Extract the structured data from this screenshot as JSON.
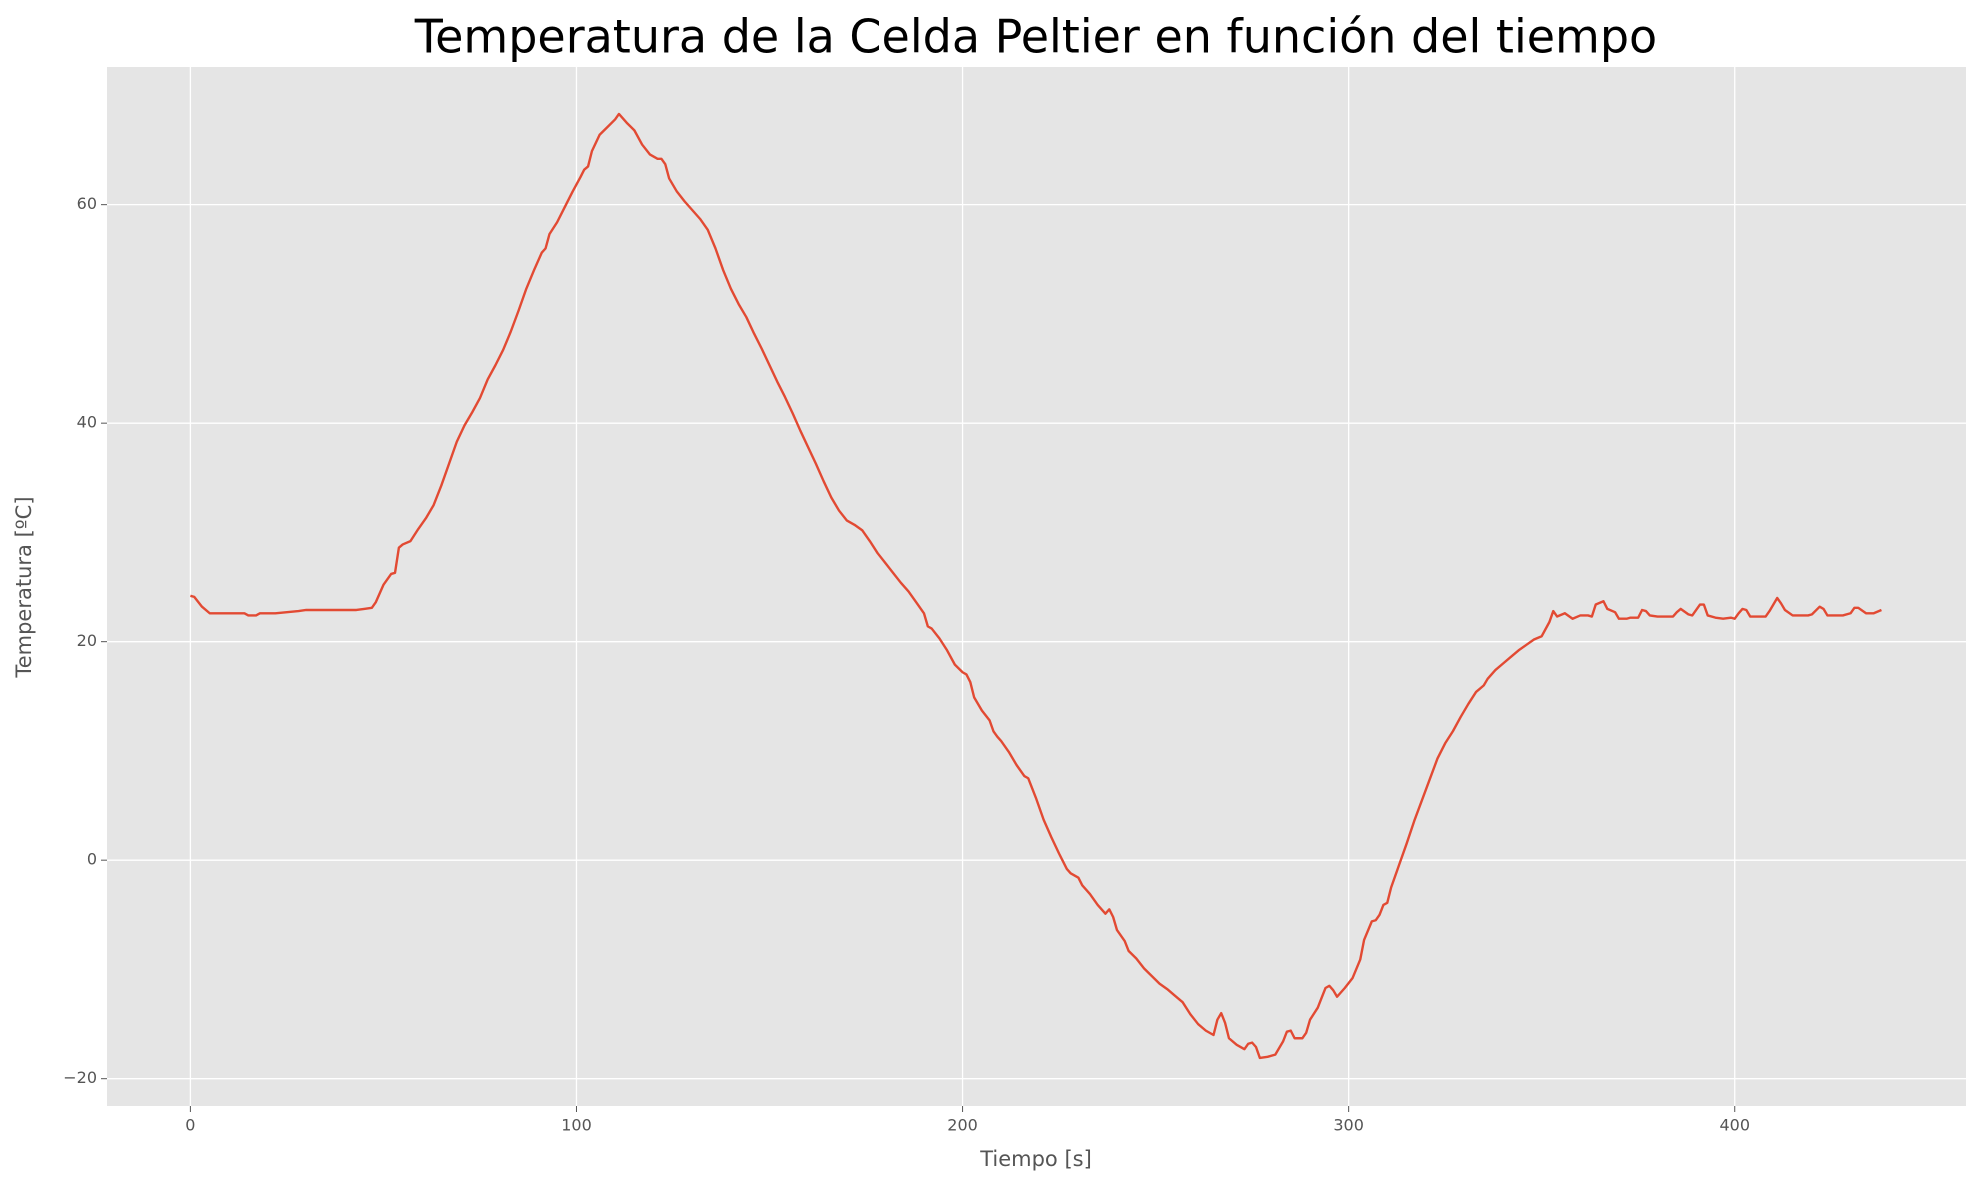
{
  "chart_data": {
    "type": "line",
    "title": "Temperatura de la Celda Peltier en función del tiempo",
    "xlabel": "Tiempo [s]",
    "ylabel": "Temperatura [ºC]",
    "color": "#E24A33",
    "grid": true,
    "xlim": [
      -21.6,
      459.9
    ],
    "ylim": [
      -22.5,
      72.6
    ],
    "xticks": [
      0,
      100,
      200,
      300,
      400
    ],
    "yticks": [
      {
        "value": -20,
        "label": "−20"
      },
      0,
      20,
      40,
      60
    ],
    "x": [
      0,
      1,
      3,
      5,
      10,
      14,
      15,
      17,
      18,
      22,
      25,
      28,
      30,
      35,
      40,
      43,
      45,
      47,
      48,
      50,
      52,
      53,
      54,
      55,
      57,
      59,
      61,
      63,
      65,
      67,
      69,
      71,
      73,
      75,
      77,
      79,
      81,
      83,
      85,
      87,
      89,
      91,
      92,
      93,
      95,
      97,
      99,
      101,
      102,
      103,
      104,
      106,
      108,
      110,
      111,
      113,
      115,
      117,
      119,
      121,
      122,
      123,
      124,
      126,
      128,
      130,
      132,
      134,
      136,
      138,
      140,
      142,
      144,
      146,
      148,
      150,
      152,
      154,
      156,
      158,
      160,
      162,
      164,
      166,
      168,
      170,
      172,
      174,
      176,
      178,
      180,
      182,
      184,
      186,
      188,
      190,
      191,
      192,
      194,
      196,
      198,
      200,
      201,
      202,
      203,
      205,
      207,
      208,
      209,
      210,
      212,
      214,
      216,
      217,
      219,
      221,
      223,
      225,
      227,
      228,
      230,
      231,
      233,
      235,
      237,
      238,
      239,
      240,
      242,
      243,
      245,
      247,
      249,
      251,
      253,
      255,
      257,
      259,
      261,
      263,
      265,
      266,
      267,
      268,
      269,
      271,
      273,
      274,
      275,
      276,
      277,
      279,
      281,
      283,
      284,
      285,
      286,
      288,
      289,
      290,
      292,
      293,
      294,
      295,
      296,
      297,
      299,
      301,
      303,
      304,
      306,
      307,
      308,
      309,
      310,
      311,
      313,
      315,
      317,
      319,
      321,
      323,
      325,
      327,
      329,
      331,
      333,
      334,
      335,
      336,
      338,
      340,
      342,
      344,
      346,
      348,
      350,
      352,
      353,
      354,
      356,
      358,
      360,
      362,
      363,
      364,
      366,
      367,
      369,
      370,
      372,
      373,
      375,
      376,
      377,
      378,
      380,
      382,
      384,
      385,
      386,
      388,
      389,
      391,
      392,
      393,
      395,
      397,
      399,
      400,
      401,
      402,
      403,
      404,
      406,
      408,
      409,
      411,
      412,
      413,
      415,
      417,
      419,
      420,
      422,
      423,
      424,
      426,
      428,
      430,
      431,
      432,
      434,
      436,
      438
    ],
    "values": [
      24.2,
      24.1,
      23.2,
      22.6,
      22.6,
      22.6,
      22.4,
      22.4,
      22.6,
      22.6,
      22.7,
      22.8,
      22.9,
      22.9,
      22.9,
      22.9,
      23.0,
      23.1,
      23.6,
      25.2,
      26.2,
      26.3,
      28.6,
      28.9,
      29.2,
      30.3,
      31.3,
      32.5,
      34.3,
      36.3,
      38.3,
      39.8,
      41.0,
      42.3,
      44.0,
      45.3,
      46.7,
      48.4,
      50.3,
      52.3,
      54.0,
      55.6,
      56.0,
      57.3,
      58.4,
      59.8,
      61.2,
      62.5,
      63.2,
      63.5,
      64.9,
      66.4,
      67.1,
      67.8,
      68.3,
      67.5,
      66.8,
      65.5,
      64.6,
      64.2,
      64.2,
      63.7,
      62.4,
      61.2,
      60.3,
      59.5,
      58.7,
      57.7,
      56.0,
      54.0,
      52.3,
      50.9,
      49.7,
      48.2,
      46.8,
      45.3,
      43.8,
      42.4,
      40.9,
      39.3,
      37.8,
      36.3,
      34.7,
      33.2,
      32.0,
      31.1,
      30.7,
      30.2,
      29.2,
      28.1,
      27.2,
      26.3,
      25.4,
      24.6,
      23.6,
      22.6,
      21.4,
      21.2,
      20.3,
      19.2,
      17.9,
      17.2,
      17.0,
      16.3,
      14.9,
      13.7,
      12.8,
      11.8,
      11.3,
      10.9,
      9.9,
      8.7,
      7.7,
      7.5,
      5.7,
      3.7,
      2.1,
      0.6,
      -0.8,
      -1.2,
      -1.6,
      -2.3,
      -3.1,
      -4.1,
      -4.9,
      -4.5,
      -5.2,
      -6.4,
      -7.4,
      -8.3,
      -9.0,
      -9.9,
      -10.6,
      -11.3,
      -11.8,
      -12.4,
      -13.0,
      -14.1,
      -15.0,
      -15.6,
      -16.0,
      -14.6,
      -14.0,
      -14.9,
      -16.3,
      -16.9,
      -17.3,
      -16.8,
      -16.7,
      -17.1,
      -18.1,
      -18.0,
      -17.8,
      -16.6,
      -15.7,
      -15.6,
      -16.3,
      -16.3,
      -15.8,
      -14.6,
      -13.5,
      -12.6,
      -11.7,
      -11.5,
      -11.9,
      -12.5,
      -11.7,
      -10.8,
      -9.1,
      -7.3,
      -5.6,
      -5.5,
      -5.0,
      -4.1,
      -3.9,
      -2.5,
      -0.5,
      1.5,
      3.6,
      5.5,
      7.4,
      9.3,
      10.7,
      11.8,
      13.1,
      14.3,
      15.4,
      15.7,
      16.0,
      16.6,
      17.4,
      18.0,
      18.6,
      19.2,
      19.7,
      20.2,
      20.5,
      21.8,
      22.8,
      22.3,
      22.6,
      22.1,
      22.4,
      22.4,
      22.3,
      23.4,
      23.7,
      23.0,
      22.7,
      22.1,
      22.1,
      22.2,
      22.2,
      22.9,
      22.8,
      22.4,
      22.3,
      22.3,
      22.3,
      22.7,
      23.0,
      22.5,
      22.4,
      23.4,
      23.4,
      22.4,
      22.2,
      22.1,
      22.2,
      22.1,
      22.6,
      23.0,
      22.9,
      22.3,
      22.3,
      22.3,
      22.8,
      24.0,
      23.5,
      22.9,
      22.4,
      22.4,
      22.4,
      22.5,
      23.2,
      23.0,
      22.4,
      22.4,
      22.4,
      22.6,
      23.1,
      23.1,
      22.6,
      22.6,
      22.9
    ]
  }
}
